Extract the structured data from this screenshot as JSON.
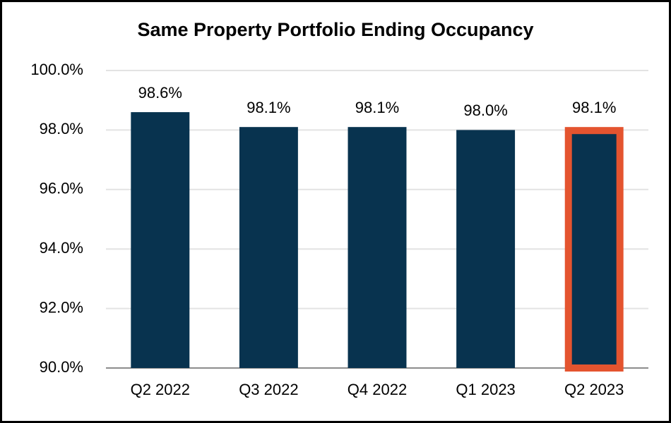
{
  "chart_data": {
    "type": "bar",
    "title": "Same Property Portfolio Ending Occupancy",
    "categories": [
      "Q2 2022",
      "Q3 2022",
      "Q4 2022",
      "Q1 2023",
      "Q2 2023"
    ],
    "values": [
      98.6,
      98.1,
      98.1,
      98.0,
      98.1
    ],
    "value_labels": [
      "98.6%",
      "98.1%",
      "98.1%",
      "98.0%",
      "98.1%"
    ],
    "color": "#08334f",
    "highlight": {
      "index": 4,
      "color": "#e4542f"
    },
    "ylim": [
      90,
      100
    ],
    "yticks": [
      {
        "value": 90,
        "label": "90.0%"
      },
      {
        "value": 92,
        "label": "92.0%"
      },
      {
        "value": 94,
        "label": "94.0%"
      },
      {
        "value": 96,
        "label": "96.0%"
      },
      {
        "value": 98,
        "label": "98.0%"
      },
      {
        "value": 100,
        "label": "100.0%"
      }
    ],
    "grid": true
  }
}
